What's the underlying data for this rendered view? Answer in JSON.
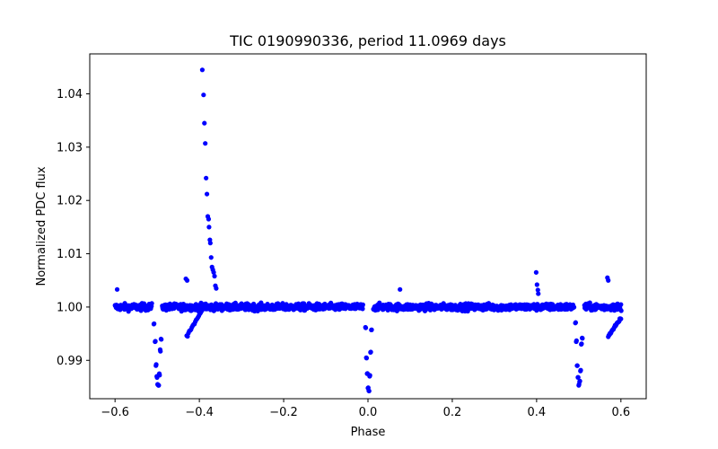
{
  "chart_data": {
    "type": "scatter",
    "title": "TIC 0190990336, period 11.0969 days",
    "xlabel": "Phase",
    "ylabel": "Normalized PDC flux",
    "xlim": [
      -0.66,
      0.66
    ],
    "ylim": [
      0.9828,
      1.0475
    ],
    "xticks": [
      -0.6,
      -0.4,
      -0.2,
      0.0,
      0.2,
      0.4,
      0.6
    ],
    "xtick_labels": [
      "−0.6",
      "−0.4",
      "−0.2",
      "0.0",
      "0.2",
      "0.4",
      "0.6"
    ],
    "yticks": [
      0.99,
      1.0,
      1.01,
      1.02,
      1.03,
      1.04
    ],
    "ytick_labels": [
      "0.99",
      "1.00",
      "1.01",
      "1.02",
      "1.03",
      "1.04"
    ],
    "marker_color": "#0000ff",
    "series": [
      {
        "name": "flux",
        "baseline": 1.0,
        "phase_range": [
          -0.6,
          0.6
        ],
        "features": {
          "primary_eclipses": [
            {
              "center": -0.5,
              "depth_min": 0.985,
              "values": [
                [
                  -0.508,
                  0.9968
                ],
                [
                  -0.505,
                  0.9935
                ],
                [
                  -0.503,
                  0.989
                ],
                [
                  -0.501,
                  0.987
                ],
                [
                  -0.499,
                  0.9855
                ],
                [
                  -0.497,
                  0.9853
                ],
                [
                  -0.495,
                  0.9875
                ],
                [
                  -0.493,
                  0.992
                ],
                [
                  -0.491,
                  0.994
                ]
              ]
            },
            {
              "center": 0.0,
              "depth_min": 0.984,
              "values": [
                [
                  -0.006,
                  0.9962
                ],
                [
                  -0.004,
                  0.9905
                ],
                [
                  -0.002,
                  0.9875
                ],
                [
                  0.0,
                  0.9848
                ],
                [
                  0.002,
                  0.9843
                ],
                [
                  0.004,
                  0.987
                ],
                [
                  0.006,
                  0.9915
                ],
                [
                  0.008,
                  0.9957
                ]
              ]
            },
            {
              "center": 0.5,
              "depth_min": 0.985,
              "values": [
                [
                  0.492,
                  0.997
                ],
                [
                  0.494,
                  0.9935
                ],
                [
                  0.496,
                  0.989
                ],
                [
                  0.498,
                  0.9868
                ],
                [
                  0.5,
                  0.9853
                ],
                [
                  0.502,
                  0.986
                ],
                [
                  0.504,
                  0.988
                ],
                [
                  0.506,
                  0.993
                ],
                [
                  0.508,
                  0.9942
                ]
              ]
            }
          ],
          "flare": [
            [
              -0.432,
              1.0053
            ],
            [
              -0.429,
              1.005
            ],
            [
              -0.393,
              1.0445
            ],
            [
              -0.39,
              1.0398
            ],
            [
              -0.388,
              1.0345
            ],
            [
              -0.386,
              1.0307
            ],
            [
              -0.384,
              1.0242
            ],
            [
              -0.382,
              1.0212
            ],
            [
              -0.38,
              1.017
            ],
            [
              -0.378,
              1.0165
            ],
            [
              -0.377,
              1.015
            ],
            [
              -0.375,
              1.0126
            ],
            [
              -0.374,
              1.012
            ],
            [
              -0.372,
              1.0093
            ],
            [
              -0.37,
              1.0075
            ],
            [
              -0.368,
              1.007
            ],
            [
              -0.366,
              1.0065
            ],
            [
              -0.364,
              1.0058
            ],
            [
              -0.362,
              1.004
            ],
            [
              -0.36,
              1.0035
            ]
          ],
          "outliers": [
            [
              -0.595,
              1.0033
            ],
            [
              0.076,
              1.0033
            ],
            [
              0.399,
              1.0065
            ],
            [
              0.401,
              1.0042
            ],
            [
              0.403,
              1.0032
            ],
            [
              0.404,
              1.0025
            ],
            [
              0.568,
              1.0055
            ],
            [
              0.57,
              1.005
            ]
          ],
          "ramps": [
            {
              "from": [
                -0.43,
                0.9945
              ],
              "to": [
                -0.385,
                1.0005
              ]
            },
            {
              "from": [
                0.57,
                0.9945
              ],
              "to": [
                0.6,
                0.998
              ]
            }
          ]
        }
      }
    ]
  }
}
